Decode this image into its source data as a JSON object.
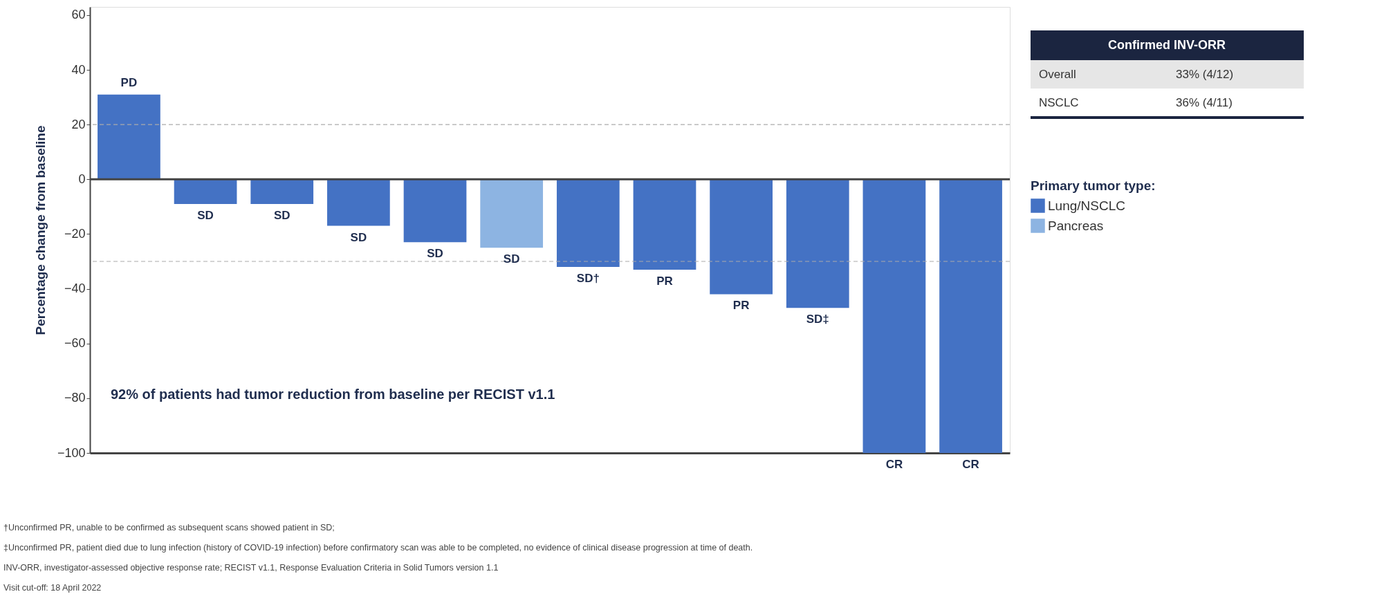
{
  "chart_data": {
    "type": "bar",
    "ylabel": "Percentage change from baseline",
    "legend_title": "Primary tumor type:",
    "categories": [
      null,
      null,
      null,
      null,
      null,
      null,
      null,
      null,
      null,
      null,
      null,
      null
    ],
    "series": [
      {
        "name": "Lung/NSCLC",
        "color": "#4472c4",
        "values": [
          31,
          -9,
          -9,
          -17,
          -23,
          null,
          -32,
          -33,
          -42,
          -47,
          -100,
          -100
        ],
        "value_labels": [
          "PD",
          "SD",
          "SD",
          "SD",
          "SD",
          null,
          "SD†",
          "PR",
          "PR",
          "SD‡",
          "CR",
          "CR"
        ]
      },
      {
        "name": "Pancreas",
        "color": "#8db4e2",
        "values": [
          null,
          null,
          null,
          null,
          null,
          -25,
          null,
          null,
          null,
          null,
          null,
          null
        ],
        "value_labels": [
          null,
          null,
          null,
          null,
          null,
          "SD",
          null,
          null,
          null,
          null,
          null,
          null
        ]
      }
    ],
    "ylim": [
      -100,
      63
    ],
    "yticks": [
      60,
      40,
      20,
      0,
      -20,
      -40,
      -60,
      -80,
      -100
    ],
    "grid": false,
    "legend": "right",
    "tick_labels": "y",
    "ref_lines": [
      {
        "axis": "y",
        "value": 20,
        "label": null,
        "color": "#aaaaaa",
        "line_style": "dashed"
      },
      {
        "axis": "y",
        "value": -30,
        "label": null,
        "color": "#aaaaaa",
        "line_style": "dashed"
      }
    ],
    "annotations": [
      "92% of patients had tumor reduction from baseline per RECIST v1.1",
      "Confirmed INV-ORR",
      "Overall",
      "33% (4/12)",
      "NSCLC",
      "36% (4/11)",
      "†Unconfirmed PR, unable to be confirmed as subsequent scans showed patient in SD;",
      "‡Unconfirmed PR, patient died due to lung infection (history of COVID-19 infection) before confirmatory scan was able to be completed, no evidence of clinical disease progression at time of death.",
      "INV-ORR, investigator-assessed objective response rate; RECIST v1.1, Response Evaluation Criteria in Solid Tumors version 1.1",
      "Visit cut-off: 18 April 2022"
    ]
  }
}
